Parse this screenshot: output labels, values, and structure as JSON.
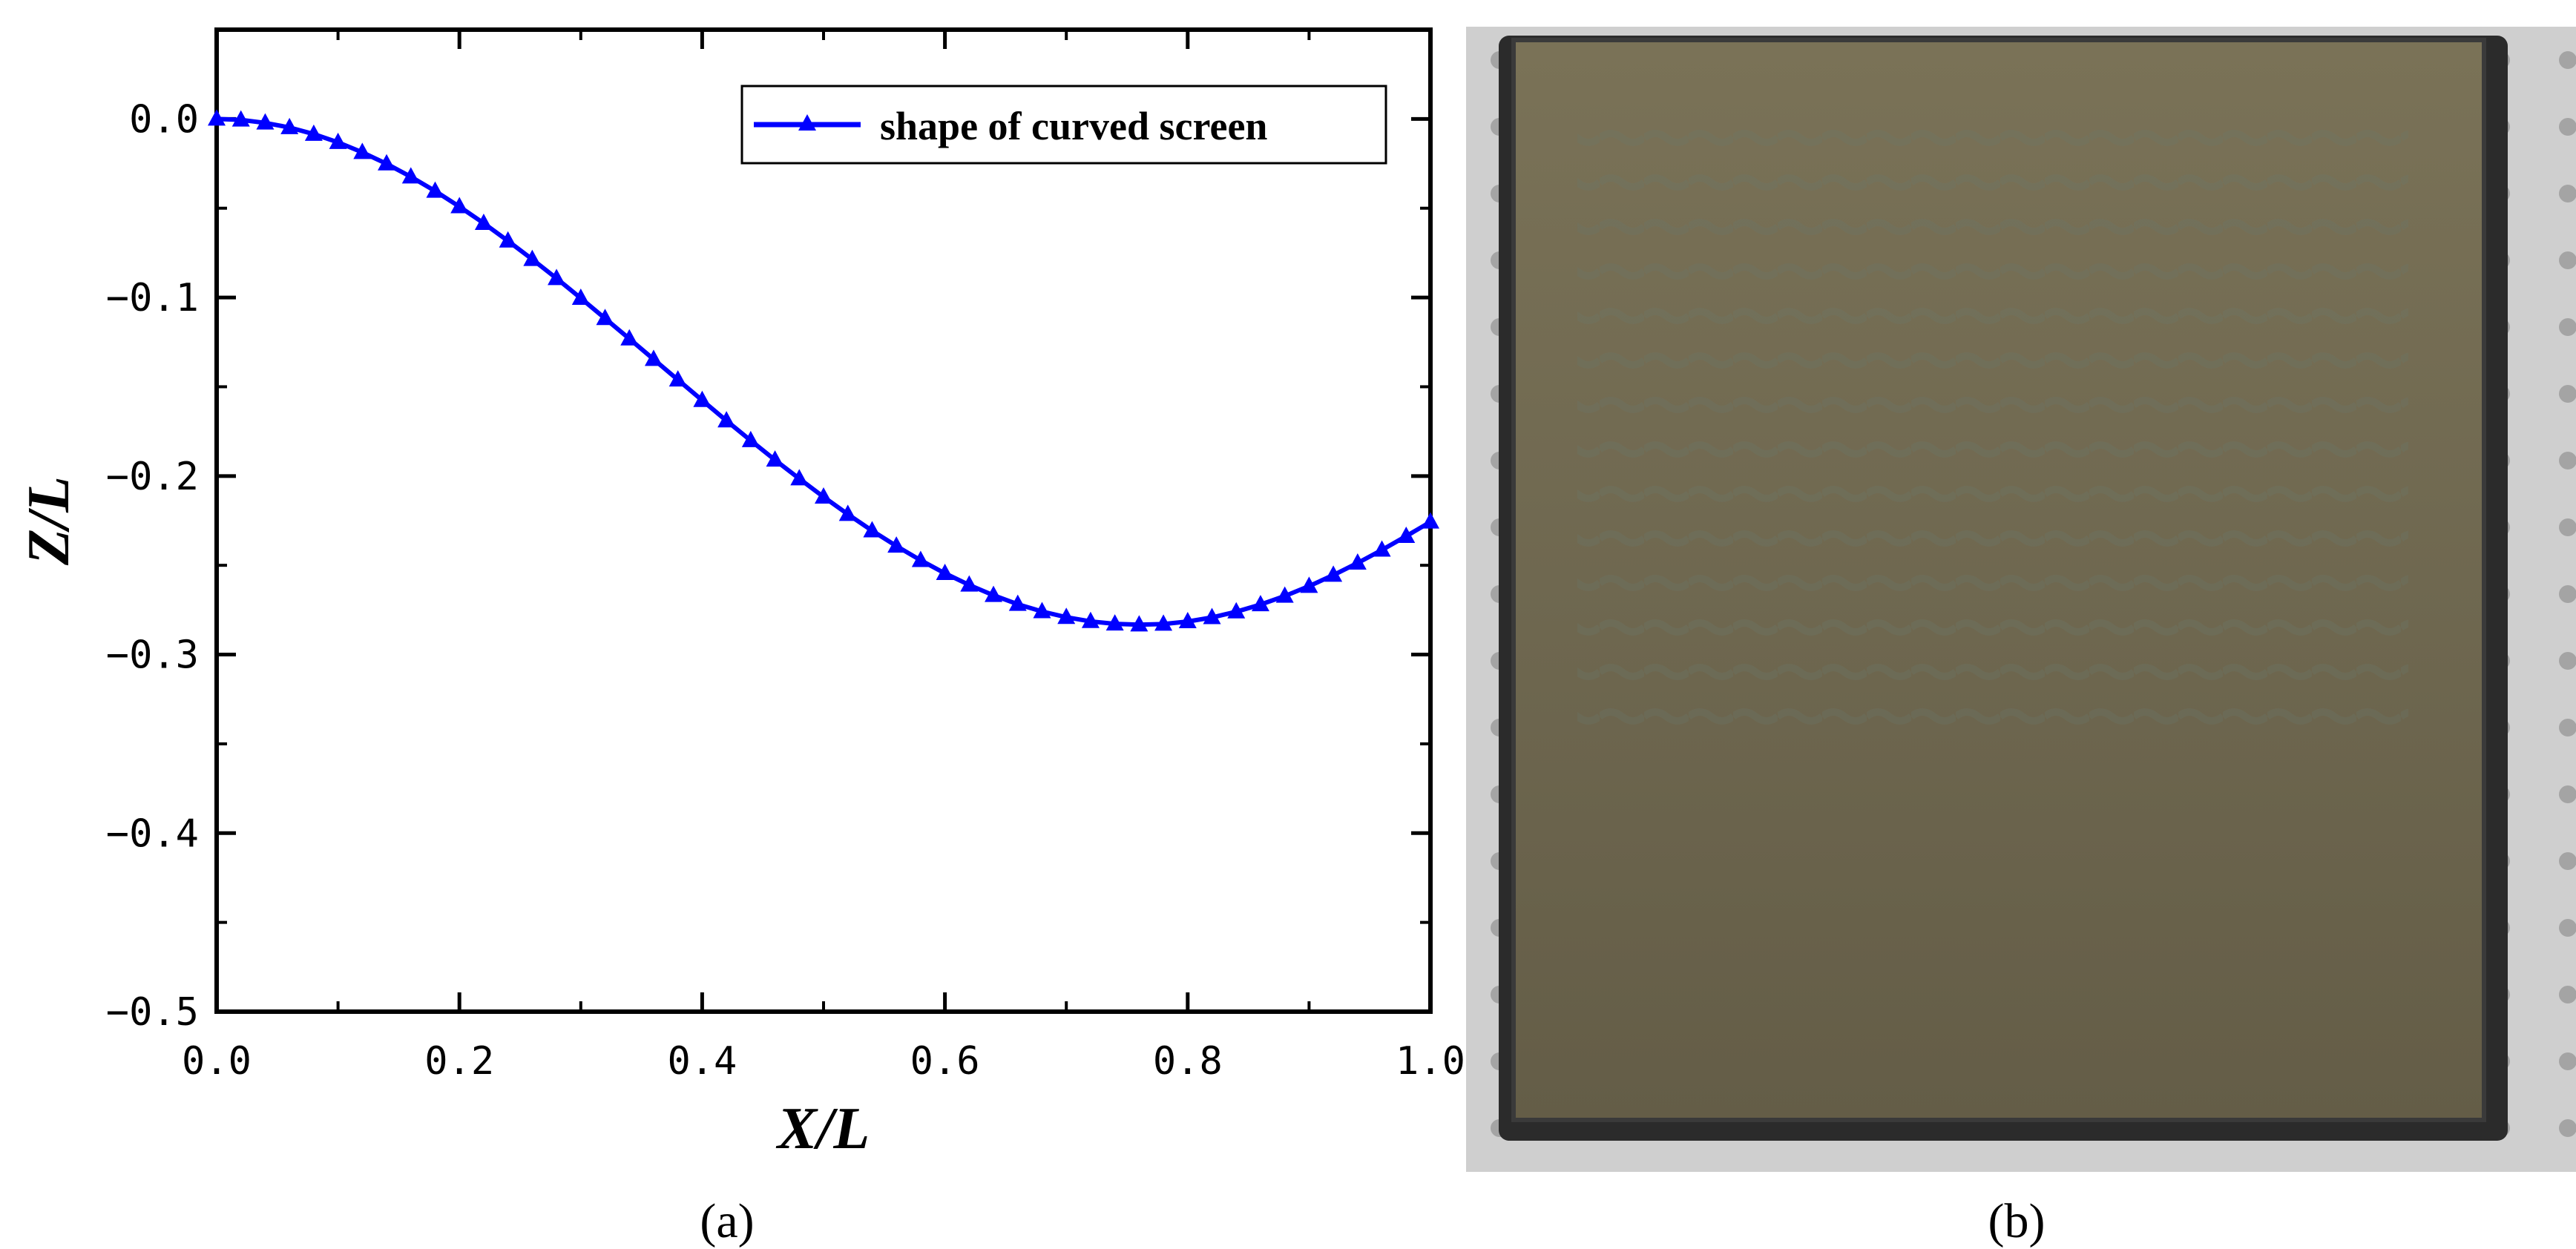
{
  "chart_data": {
    "type": "line",
    "xlabel": "X/L",
    "ylabel": "Z/L",
    "xlim": [
      0.0,
      1.0
    ],
    "ylim": [
      -0.5,
      0.05
    ],
    "grid": false,
    "legend_position": "top-right",
    "x_ticks": [
      0.0,
      0.2,
      0.4,
      0.6,
      0.8,
      1.0
    ],
    "x_tick_labels": [
      "0.0",
      "0.2",
      "0.4",
      "0.6",
      "0.8",
      "1.0"
    ],
    "y_ticks": [
      0.0,
      -0.1,
      -0.2,
      -0.3,
      -0.4,
      -0.5
    ],
    "y_tick_labels": [
      "0.0",
      "−0.1",
      "−0.2",
      "−0.3",
      "−0.4",
      "−0.5"
    ],
    "series": [
      {
        "name": "shape of curved screen",
        "color": "#0000ff",
        "marker": "triangle",
        "x": [
          0.0,
          0.02,
          0.04,
          0.06,
          0.08,
          0.1,
          0.12,
          0.14,
          0.16,
          0.18,
          0.2,
          0.22,
          0.24,
          0.26,
          0.28,
          0.3,
          0.32,
          0.34,
          0.36,
          0.38,
          0.4,
          0.42,
          0.44,
          0.46,
          0.48,
          0.5,
          0.52,
          0.54,
          0.56,
          0.58,
          0.6,
          0.62,
          0.64,
          0.66,
          0.68,
          0.7,
          0.72,
          0.74,
          0.76,
          0.78,
          0.8,
          0.82,
          0.84,
          0.86,
          0.88,
          0.9,
          0.92,
          0.94,
          0.96,
          0.98,
          1.0
        ],
        "y": [
          0.0,
          -0.0005,
          -0.0022,
          -0.0048,
          -0.0085,
          -0.0131,
          -0.0187,
          -0.0251,
          -0.0324,
          -0.0404,
          -0.0491,
          -0.0584,
          -0.0683,
          -0.0786,
          -0.0893,
          -0.1004,
          -0.1117,
          -0.1231,
          -0.1346,
          -0.1461,
          -0.1576,
          -0.169,
          -0.1801,
          -0.191,
          -0.2015,
          -0.2117,
          -0.2214,
          -0.2306,
          -0.2392,
          -0.2472,
          -0.2545,
          -0.261,
          -0.2668,
          -0.2718,
          -0.2759,
          -0.2791,
          -0.2814,
          -0.2828,
          -0.2833,
          -0.2829,
          -0.2815,
          -0.2792,
          -0.276,
          -0.272,
          -0.2672,
          -0.2617,
          -0.2555,
          -0.2487,
          -0.2414,
          -0.2337,
          -0.2257
        ]
      }
    ]
  },
  "panel_labels": {
    "a": "(a)",
    "b": "(b)"
  },
  "photo": {
    "icon": "curved-screen-photo",
    "surface_color": "#716a4f",
    "frame_color": "#2a2a2a",
    "background_color": "#cfcfcf"
  }
}
